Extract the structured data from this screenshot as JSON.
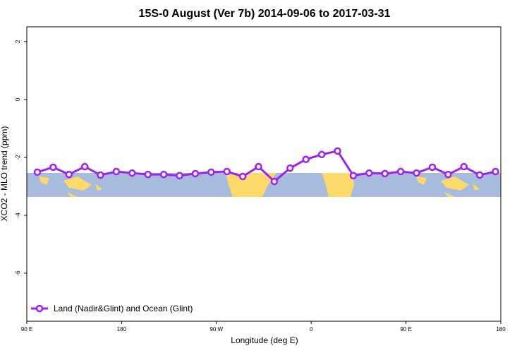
{
  "chart_data": {
    "type": "line",
    "title": "15S-0 August (Ver 7b)   2014-09-06 to 2017-03-31",
    "xlabel": "Longitude (deg E)",
    "ylabel": "XCO2 - MLO trend (ppm)",
    "x": [
      100,
      115,
      130,
      145,
      160,
      175,
      190,
      205,
      220,
      235,
      250,
      265,
      280,
      295,
      310,
      325,
      340,
      355,
      370,
      385,
      400,
      415,
      430,
      445,
      460,
      475,
      490,
      505,
      520,
      535
    ],
    "series": [
      {
        "name": "Land (Nadir&Glint) and Ocean (Glint)",
        "color": "#a020f0",
        "values": [
          -2.51,
          -2.34,
          -2.59,
          -2.32,
          -2.61,
          -2.49,
          -2.54,
          -2.59,
          -2.59,
          -2.63,
          -2.56,
          -2.51,
          -2.49,
          -2.66,
          -2.32,
          -2.83,
          -2.37,
          -2.07,
          -1.9,
          -1.78,
          -2.63,
          -2.54,
          -2.56,
          -2.49,
          -2.54,
          -2.34,
          -2.59,
          -2.32,
          -2.61,
          -2.49
        ]
      }
    ],
    "xlim": [
      90,
      540
    ],
    "xticks": [
      {
        "value": 90,
        "label": "90 E"
      },
      180,
      {
        "value": 270,
        "label": "90 W"
      },
      {
        "value": 360,
        "label": "0"
      },
      {
        "value": 450,
        "label": "90 E"
      },
      {
        "value": 540,
        "label": "180"
      }
    ],
    "ylim": [
      -7.66,
      2.51
    ],
    "yticks": [
      2,
      0,
      -2,
      -4,
      -6
    ],
    "legend": "bottom-left"
  }
}
